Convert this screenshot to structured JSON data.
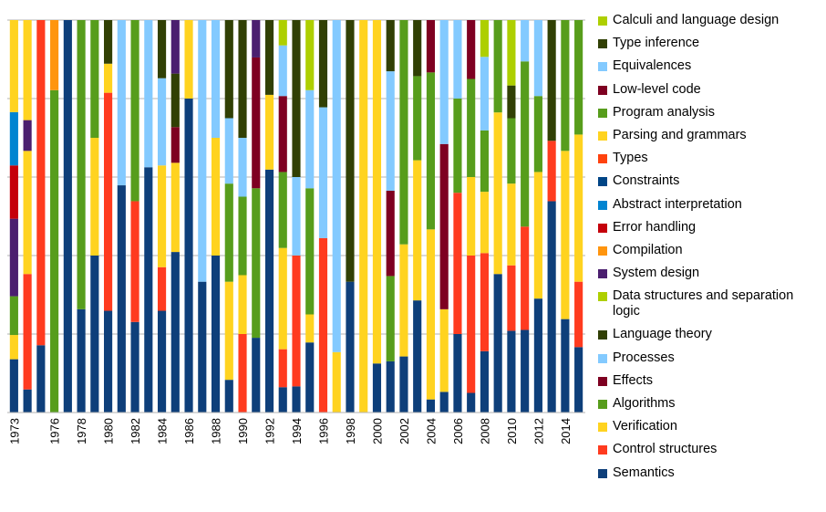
{
  "chart_data": {
    "type": "bar",
    "stacked": true,
    "normalized": true,
    "title": "",
    "xlabel": "",
    "ylabel": "",
    "grid": true,
    "legend_position": "right",
    "x_tick_labels": [
      "1973",
      "1976",
      "1978",
      "1980",
      "1982",
      "1984",
      "1986",
      "1988",
      "1990",
      "1992",
      "1994",
      "1996",
      "1998",
      "2000",
      "2002",
      "2004",
      "2006",
      "2008",
      "2010",
      "2012",
      "2014"
    ],
    "categories": [
      "1973",
      "1974",
      "1975",
      "1976",
      "1977",
      "1978",
      "1979",
      "1980",
      "1981",
      "1982",
      "1983",
      "1984",
      "1985",
      "1986",
      "1987",
      "1988",
      "1989",
      "1990",
      "1991",
      "1992",
      "1993",
      "1994",
      "1995",
      "1996",
      "1997",
      "1998",
      "1999",
      "2000",
      "2001",
      "2002",
      "2003",
      "2004",
      "2005",
      "2006",
      "2007",
      "2008",
      "2009",
      "2010",
      "2011",
      "2012",
      "2013",
      "2014",
      "2015"
    ],
    "series": [
      {
        "name": "Semantics",
        "color": "#0e3f7a",
        "values": [
          0.11,
          0.03,
          0.06,
          0.0,
          0.07,
          0.1,
          0.04,
          0.07,
          0.11,
          0.03,
          0.05,
          0.07,
          0.09,
          0.16,
          0.03,
          0.08,
          0.01,
          0.0,
          0.04,
          0.13,
          0.02,
          0.01,
          0.05,
          0.0,
          0.0,
          0.03,
          0.0,
          0.01,
          0.03,
          0.02,
          0.04,
          0.01,
          0.01,
          0.05,
          0.01,
          0.05,
          0.06,
          0.05,
          0.04,
          0.09,
          0.07,
          0.05,
          0.04
        ]
      },
      {
        "name": "Control structures",
        "color": "#ff3b1f",
        "values": [
          0.0,
          0.15,
          0.29,
          0.0,
          0.0,
          0.0,
          0.0,
          0.15,
          0.0,
          0.04,
          0.0,
          0.03,
          0.0,
          0.0,
          0.0,
          0.0,
          0.0,
          0.04,
          0.0,
          0.0,
          0.03,
          0.05,
          0.0,
          0.04,
          0.0,
          0.0,
          0.0,
          0.0,
          0.0,
          0.0,
          0.0,
          0.0,
          0.0,
          0.09,
          0.07,
          0.08,
          0.0,
          0.04,
          0.05,
          0.0,
          0.02,
          0.0,
          0.04
        ]
      },
      {
        "name": "Verification",
        "color": "#ffd320",
        "values": [
          0.05,
          0.16,
          0.0,
          0.0,
          0.0,
          0.0,
          0.03,
          0.02,
          0.0,
          0.0,
          0.0,
          0.07,
          0.05,
          0.04,
          0.0,
          0.06,
          0.03,
          0.03,
          0.0,
          0.04,
          0.08,
          0.0,
          0.02,
          0.0,
          0.02,
          0.0,
          0.03,
          0.07,
          0.0,
          0.04,
          0.05,
          0.13,
          0.04,
          0.0,
          0.04,
          0.05,
          0.07,
          0.05,
          0.0,
          0.1,
          0.0,
          0.09,
          0.09
        ]
      },
      {
        "name": "Algorithms",
        "color": "#579d1c",
        "values": [
          0.08,
          0.0,
          0.0,
          0.23,
          0.0,
          0.28,
          0.03,
          0.0,
          0.0,
          0.06,
          0.0,
          0.0,
          0.0,
          0.0,
          0.0,
          0.0,
          0.03,
          0.04,
          0.08,
          0.0,
          0.06,
          0.0,
          0.09,
          0.0,
          0.0,
          0.0,
          0.0,
          0.0,
          0.05,
          0.08,
          0.03,
          0.12,
          0.0,
          0.06,
          0.05,
          0.05,
          0.04,
          0.04,
          0.08,
          0.06,
          0.0,
          0.07,
          0.07
        ]
      },
      {
        "name": "Effects",
        "color": "#7e0021",
        "values": [
          0.0,
          0.0,
          0.0,
          0.0,
          0.0,
          0.0,
          0.0,
          0.0,
          0.0,
          0.0,
          0.0,
          0.0,
          0.02,
          0.0,
          0.0,
          0.0,
          0.0,
          0.0,
          0.07,
          0.0,
          0.06,
          0.0,
          0.0,
          0.0,
          0.0,
          0.0,
          0.0,
          0.0,
          0.05,
          0.0,
          0.0,
          0.04,
          0.08,
          0.0,
          0.03,
          0.0,
          0.0,
          0.0,
          0.0,
          0.0,
          0.0,
          0.0,
          0.0
        ]
      },
      {
        "name": "Processes",
        "color": "#83caff",
        "values": [
          0.0,
          0.0,
          0.0,
          0.0,
          0.0,
          0.0,
          0.0,
          0.0,
          0.08,
          0.0,
          0.03,
          0.06,
          0.0,
          0.0,
          0.06,
          0.06,
          0.02,
          0.03,
          0.0,
          0.0,
          0.04,
          0.03,
          0.07,
          0.03,
          0.11,
          0.0,
          0.0,
          0.0,
          0.07,
          0.0,
          0.0,
          0.0,
          0.06,
          0.05,
          0.0,
          0.06,
          0.0,
          0.0,
          0.02,
          0.06,
          0.0,
          0.0,
          0.0
        ]
      },
      {
        "name": "Language theory",
        "color": "#314004",
        "values": [
          0.0,
          0.0,
          0.0,
          0.0,
          0.0,
          0.0,
          0.0,
          0.03,
          0.0,
          0.0,
          0.0,
          0.04,
          0.03,
          0.0,
          0.0,
          0.0,
          0.03,
          0.06,
          0.0,
          0.04,
          0.0,
          0.06,
          0.0,
          0.02,
          0.0,
          0.06,
          0.0,
          0.0,
          0.03,
          0.0,
          0.02,
          0.0,
          0.0,
          0.0,
          0.0,
          0.0,
          0.0,
          0.02,
          0.0,
          0.0,
          0.04,
          0.0,
          0.0
        ]
      },
      {
        "name": "Data structures and separation logic",
        "color": "#aecf00",
        "values": [
          0.0,
          0.0,
          0.0,
          0.0,
          0.0,
          0.0,
          0.0,
          0.0,
          0.0,
          0.0,
          0.0,
          0.0,
          0.0,
          0.0,
          0.0,
          0.0,
          0.0,
          0.0,
          0.0,
          0.0,
          0.02,
          0.0,
          0.05,
          0.0,
          0.0,
          0.0,
          0.0,
          0.0,
          0.0,
          0.0,
          0.0,
          0.0,
          0.0,
          0.0,
          0.0,
          0.03,
          0.0,
          0.04,
          0.0,
          0.0,
          0.0,
          0.0,
          0.0
        ]
      },
      {
        "name": "System design",
        "color": "#4b1f6f",
        "values": [
          0.16,
          0.04,
          0.0,
          0.0,
          0.0,
          0.0,
          0.0,
          0.0,
          0.0,
          0.0,
          0.0,
          0.0,
          0.03,
          0.0,
          0.0,
          0.0,
          0.0,
          0.0,
          0.02,
          0.0,
          0.0,
          0.0,
          0.0,
          0.0,
          0.0,
          0.0,
          0.0,
          0.0,
          0.0,
          0.0,
          0.0,
          0.0,
          0.0,
          0.0,
          0.0,
          0.0,
          0.0,
          0.0,
          0.0,
          0.0,
          0.0,
          0.0,
          0.0
        ]
      },
      {
        "name": "Compilation",
        "color": "#ff950e",
        "values": [
          0.0,
          0.0,
          0.0,
          0.05,
          0.0,
          0.0,
          0.0,
          0.0,
          0.0,
          0.0,
          0.0,
          0.0,
          0.0,
          0.0,
          0.0,
          0.0,
          0.0,
          0.0,
          0.0,
          0.0,
          0.0,
          0.0,
          0.0,
          0.0,
          0.0,
          0.0,
          0.0,
          0.0,
          0.0,
          0.0,
          0.0,
          0.0,
          0.0,
          0.0,
          0.0,
          0.0,
          0.0,
          0.0,
          0.0,
          0.0,
          0.0,
          0.0,
          0.0
        ]
      },
      {
        "name": "Error handling",
        "color": "#c5000b",
        "values": [
          0.11,
          0.0,
          0.0,
          0.0,
          0.0,
          0.0,
          0.0,
          0.0,
          0.0,
          0.0,
          0.0,
          0.0,
          0.0,
          0.0,
          0.0,
          0.0,
          0.0,
          0.0,
          0.0,
          0.0,
          0.0,
          0.0,
          0.0,
          0.0,
          0.0,
          0.0,
          0.0,
          0.0,
          0.0,
          0.0,
          0.0,
          0.0,
          0.0,
          0.0,
          0.0,
          0.0,
          0.0,
          0.0,
          0.0,
          0.0,
          0.0,
          0.0,
          0.0
        ]
      },
      {
        "name": "Abstract interpretation",
        "color": "#0084d1",
        "values": [
          0.11,
          0.0,
          0.0,
          0.0,
          0.0,
          0.0,
          0.0,
          0.0,
          0.0,
          0.0,
          0.0,
          0.0,
          0.0,
          0.0,
          0.0,
          0.0,
          0.0,
          0.0,
          0.0,
          0.0,
          0.0,
          0.0,
          0.0,
          0.0,
          0.0,
          0.0,
          0.0,
          0.0,
          0.0,
          0.0,
          0.0,
          0.0,
          0.0,
          0.0,
          0.0,
          0.0,
          0.0,
          0.0,
          0.0,
          0.0,
          0.0,
          0.0,
          0.0
        ]
      },
      {
        "name": "Constraints",
        "color": "#004586",
        "values": [
          0.0,
          0.0,
          0.0,
          0.0,
          0.0,
          0.0,
          0.0,
          0.0,
          0.0,
          0.0,
          0.0,
          0.0,
          0.0,
          0.0,
          0.0,
          0.0,
          0.0,
          0.0,
          0.0,
          0.0,
          0.0,
          0.0,
          0.0,
          0.0,
          0.0,
          0.0,
          0.0,
          0.0,
          0.0,
          0.0,
          0.0,
          0.0,
          0.0,
          0.0,
          0.0,
          0.0,
          0.0,
          0.0,
          0.0,
          0.0,
          0.0,
          0.0,
          0.0
        ]
      },
      {
        "name": "Types",
        "color": "#ff420e",
        "values": [
          0.0,
          0.0,
          0.0,
          0.0,
          0.0,
          0.0,
          0.0,
          0.0,
          0.0,
          0.0,
          0.0,
          0.0,
          0.0,
          0.0,
          0.0,
          0.0,
          0.0,
          0.0,
          0.0,
          0.0,
          0.0,
          0.0,
          0.0,
          0.0,
          0.0,
          0.0,
          0.0,
          0.0,
          0.0,
          0.0,
          0.0,
          0.0,
          0.0,
          0.0,
          0.0,
          0.0,
          0.0,
          0.0,
          0.0,
          0.0,
          0.0,
          0.0,
          0.0
        ]
      },
      {
        "name": "Parsing and grammars",
        "color": "#ffd320",
        "values": [
          0.19,
          0.13,
          0.0,
          0.0,
          0.0,
          0.0,
          0.0,
          0.0,
          0.0,
          0.0,
          0.0,
          0.0,
          0.0,
          0.0,
          0.0,
          0.0,
          0.0,
          0.0,
          0.0,
          0.0,
          0.0,
          0.0,
          0.0,
          0.0,
          0.0,
          0.0,
          0.0,
          0.0,
          0.0,
          0.0,
          0.0,
          0.0,
          0.0,
          0.0,
          0.0,
          0.0,
          0.0,
          0.0,
          0.0,
          0.0,
          0.0,
          0.0,
          0.0
        ]
      },
      {
        "name": "Program analysis",
        "color": "#579d1c",
        "values": [
          0.0,
          0.0,
          0.0,
          0.0,
          0.0,
          0.0,
          0.0,
          0.0,
          0.0,
          0.0,
          0.0,
          0.0,
          0.0,
          0.0,
          0.0,
          0.0,
          0.0,
          0.0,
          0.0,
          0.0,
          0.0,
          0.0,
          0.0,
          0.0,
          0.0,
          0.0,
          0.0,
          0.0,
          0.0,
          0.0,
          0.0,
          0.0,
          0.0,
          0.0,
          0.0,
          0.0,
          0.0,
          0.0,
          0.0,
          0.0,
          0.0,
          0.0,
          0.0
        ]
      },
      {
        "name": "Low-level code",
        "color": "#7e0021",
        "values": [
          0.0,
          0.0,
          0.0,
          0.0,
          0.0,
          0.0,
          0.0,
          0.0,
          0.0,
          0.0,
          0.0,
          0.0,
          0.0,
          0.0,
          0.0,
          0.0,
          0.0,
          0.0,
          0.0,
          0.0,
          0.0,
          0.0,
          0.0,
          0.0,
          0.0,
          0.0,
          0.0,
          0.0,
          0.0,
          0.0,
          0.0,
          0.0,
          0.0,
          0.0,
          0.0,
          0.0,
          0.0,
          0.0,
          0.0,
          0.0,
          0.0,
          0.0,
          0.0
        ]
      },
      {
        "name": "Equivalences",
        "color": "#83caff",
        "values": [
          0.0,
          0.0,
          0.0,
          0.0,
          0.0,
          0.0,
          0.0,
          0.0,
          0.0,
          0.0,
          0.0,
          0.0,
          0.0,
          0.0,
          0.0,
          0.0,
          0.0,
          0.0,
          0.0,
          0.0,
          0.0,
          0.0,
          0.0,
          0.0,
          0.0,
          0.0,
          0.0,
          0.0,
          0.0,
          0.0,
          0.0,
          0.0,
          0.0,
          0.0,
          0.0,
          0.0,
          0.0,
          0.0,
          0.0,
          0.0,
          0.0,
          0.0,
          0.0
        ]
      },
      {
        "name": "Type inference",
        "color": "#314004",
        "values": [
          0.0,
          0.0,
          0.0,
          0.0,
          0.0,
          0.0,
          0.0,
          0.0,
          0.0,
          0.0,
          0.0,
          0.0,
          0.0,
          0.0,
          0.0,
          0.0,
          0.0,
          0.0,
          0.0,
          0.0,
          0.0,
          0.0,
          0.0,
          0.0,
          0.0,
          0.0,
          0.0,
          0.0,
          0.0,
          0.0,
          0.0,
          0.0,
          0.0,
          0.0,
          0.0,
          0.0,
          0.0,
          0.0,
          0.0,
          0.0,
          0.0,
          0.0,
          0.0
        ]
      },
      {
        "name": "Calculi and language design",
        "color": "#aecf00",
        "values": [
          0.0,
          0.0,
          0.0,
          0.0,
          0.0,
          0.0,
          0.0,
          0.0,
          0.0,
          0.0,
          0.0,
          0.0,
          0.0,
          0.0,
          0.0,
          0.0,
          0.0,
          0.0,
          0.0,
          0.0,
          0.0,
          0.0,
          0.0,
          0.0,
          0.0,
          0.0,
          0.0,
          0.0,
          0.0,
          0.0,
          0.0,
          0.0,
          0.0,
          0.0,
          0.0,
          0.0,
          0.0,
          0.0,
          0.0,
          0.0,
          0.0,
          0.0,
          0.0
        ]
      }
    ],
    "ylim": [
      0,
      1
    ]
  }
}
